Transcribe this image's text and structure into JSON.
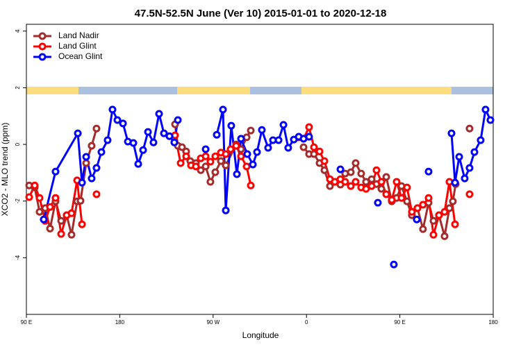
{
  "chart_data": {
    "type": "line",
    "title": "47.5N-52.5N June (Ver 10)   2015-01-01 to 2020-12-18",
    "xlabel": "Longitude",
    "ylabel": "XCO2 - MLO trend (ppm)",
    "xlim": [
      90,
      540
    ],
    "ylim": [
      -6,
      4.24
    ],
    "xticks": [
      {
        "value": 90,
        "label": "90 E"
      },
      180,
      {
        "value": 270,
        "label": "90 W"
      },
      {
        "value": 360,
        "label": "0"
      },
      {
        "value": 450,
        "label": "90 E"
      },
      {
        "value": 540,
        "label": "180"
      }
    ],
    "yticks": [
      -4,
      -2,
      0,
      2,
      4
    ],
    "legend": "upper left",
    "series": [
      {
        "name": "Land Nadir",
        "color": "#a52a2a",
        "x": [
          92.7,
          98.0,
          102.7,
          108.1,
          112.8,
          118.1,
          123.5,
          128.8,
          133.5,
          138.9,
          142.2,
          147.6,
          152.9,
          157.6,
          null,
          233.3,
          236.0,
          240.0,
          244.0,
          248.0,
          253.4,
          258.1,
          262.8,
          267.4,
          272.1,
          277.5,
          282.2,
          292.2,
          296.9,
          302.3,
          306.3,
          null,
          357.2,
          362.5,
          367.2,
          372.6,
          377.3,
          382.6,
          387.3,
          392.7,
          397.3,
          402.7,
          407.4,
          412.7,
          417.4,
          422.8,
          427.5,
          432.2,
          436.9,
          442.2,
          446.9,
          451.6,
          456.9,
          461.6,
          467.0,
          472.3,
          477.7,
          482.4,
          487.7,
          493.1,
          497.8,
          501.1,
          503.8,
          null,
          517.2
        ],
        "values": [
          -1.45,
          -1.52,
          -2.38,
          -2.25,
          -2.97,
          -2.01,
          -2.7,
          -2.5,
          -3.19,
          -2.01,
          -1.99,
          -0.66,
          -0.05,
          0.56,
          null,
          0.71,
          -0.05,
          -0.1,
          -0.25,
          -0.59,
          -0.66,
          -0.91,
          -0.78,
          -1.32,
          -0.98,
          -0.59,
          -0.74,
          0.0,
          -0.17,
          0.25,
          0.49,
          null,
          -0.1,
          -0.34,
          -0.34,
          -0.66,
          -0.91,
          -1.47,
          -1.32,
          -1.42,
          -1.03,
          -0.98,
          -0.66,
          -1.03,
          -1.32,
          -1.23,
          -1.4,
          -1.57,
          -1.15,
          -2.01,
          -1.89,
          -1.47,
          -2.01,
          -2.5,
          -2.25,
          -2.99,
          -2.06,
          -2.7,
          -2.5,
          -3.24,
          -2.25,
          -2.01,
          -1.4,
          null,
          0.56
        ]
      },
      {
        "name": "Land Glint",
        "color": "#ff0000",
        "x": [
          92.7,
          98.0,
          102.7,
          108.1,
          112.8,
          118.1,
          123.5,
          128.8,
          133.5,
          138.9,
          143.6,
          null,
          157.6,
          null,
          233.3,
          238.7,
          244.0,
          248.7,
          253.4,
          258.1,
          262.8,
          267.4,
          272.1,
          277.5,
          282.2,
          286.9,
          292.2,
          296.9,
          302.3,
          306.3,
          null,
          352.5,
          357.2,
          362.5,
          367.2,
          372.6,
          377.3,
          382.6,
          387.3,
          392.7,
          397.3,
          402.7,
          407.4,
          412.7,
          417.4,
          422.8,
          427.5,
          432.2,
          436.9,
          442.2,
          446.9,
          451.6,
          456.9,
          461.6,
          467.0,
          472.3,
          477.7,
          482.4,
          487.7,
          493.1,
          497.8,
          503.2,
          null,
          517.2
        ],
        "values": [
          -1.86,
          -1.45,
          -1.89,
          -2.7,
          -2.21,
          -1.89,
          -3.16,
          -2.5,
          -2.43,
          -1.27,
          -2.82,
          null,
          -1.76,
          null,
          0.32,
          -0.66,
          -0.42,
          -0.74,
          -0.78,
          -0.49,
          -0.42,
          -0.61,
          -0.42,
          -0.29,
          -0.34,
          -0.17,
          -0.05,
          -0.42,
          -0.78,
          -1.45,
          null,
          0.25,
          0.2,
          0.61,
          -0.1,
          -0.25,
          -0.59,
          -1.23,
          -1.32,
          -1.23,
          -1.32,
          -1.47,
          -1.32,
          -1.52,
          -1.57,
          -1.47,
          -0.91,
          -1.32,
          -1.76,
          -1.96,
          -1.32,
          -1.89,
          -1.52,
          -2.38,
          -2.25,
          -2.13,
          -1.89,
          -3.19,
          -2.5,
          -2.38,
          -1.32,
          -2.82,
          null,
          -1.76
        ]
      },
      {
        "name": "Ocean Glint",
        "color": "#0000ff",
        "x": [
          106.7,
          118.1,
          139.6,
          143.6,
          147.6,
          152.9,
          157.6,
          162.3,
          168.3,
          173.0,
          177.7,
          183.1,
          187.8,
          193.1,
          197.8,
          202.5,
          207.2,
          212.5,
          217.9,
          222.6,
          227.9,
          232.6,
          236.0,
          null,
          262.8,
          null,
          273.5,
          279.5,
          282.2,
          287.5,
          292.9,
          296.9,
          302.9,
          308.3,
          312.3,
          317.0,
          323.0,
          327.7,
          333.1,
          337.8,
          342.4,
          347.8,
          352.5,
          357.2,
          362.5,
          null,
          392.7,
          null,
          428.8,
          null,
          444.2,
          null,
          466.3,
          null,
          477.7,
          null,
          499.8,
          503.2,
          507.2,
          512.5,
          517.2,
          521.9,
          527.9,
          532.6,
          537.3
        ],
        "values": [
          -2.65,
          -0.96,
          0.39,
          -1.35,
          -0.44,
          -1.2,
          -0.83,
          -0.27,
          0.15,
          1.23,
          0.86,
          0.74,
          0.1,
          0.05,
          -0.69,
          -0.2,
          0.44,
          0.07,
          1.08,
          0.39,
          0.29,
          0.07,
          0.86,
          null,
          -0.17,
          null,
          0.34,
          1.23,
          -2.33,
          0.66,
          -1.05,
          0.2,
          -0.34,
          -0.71,
          -0.27,
          0.51,
          -0.12,
          0.15,
          0.15,
          0.69,
          -0.12,
          0.17,
          0.27,
          0.2,
          0.27,
          null,
          -0.88,
          null,
          -2.06,
          null,
          -4.24,
          null,
          -2.65,
          null,
          -0.96,
          null,
          0.39,
          -1.35,
          -0.44,
          -1.2,
          -0.83,
          -0.27,
          0.15,
          1.23,
          0.86
        ]
      }
    ]
  }
}
